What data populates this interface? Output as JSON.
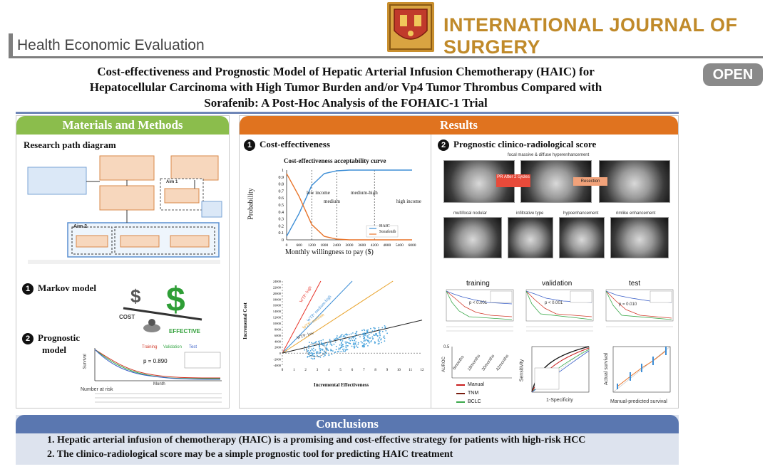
{
  "header": {
    "section_label": "Health Economic Evaluation",
    "journal_name": "INTERNATIONAL JOURNAL OF SURGERY",
    "open_badge": "OPEN",
    "colors": {
      "journal": "#c08a2a",
      "rule": "#7f7f7f"
    }
  },
  "title": {
    "line1": "Cost-effectiveness and Prognostic Model of Hepatic Arterial Infusion Chemotherapy (HAIC) for",
    "line2": "Hepatocellular Carcinoma with High Tumor Burden and/or Vp4 Tumor Thrombus Compared with",
    "line3": "Sorafenib: A Post-Hoc Analysis of the FOHAIC-1 Trial"
  },
  "materials": {
    "heading": "Materials and Methods",
    "research_path": "Research path diagram",
    "markov_num": "1",
    "markov": "Markov model",
    "cost_word": "COST",
    "effective_word": "EFFECTIVE",
    "prog_num": "2",
    "prognostic_line1": "Prognostic",
    "prognostic_line2": "model",
    "km_pvalue": "p = 0.890",
    "km_survival": "Survival",
    "km_month": "Month",
    "number_at_risk": "Number at risk",
    "km_legend": [
      "Training",
      "Validation",
      "Test"
    ],
    "aims": [
      "Aim 1",
      "Aim 2"
    ]
  },
  "results": {
    "heading": "Results",
    "ce_num": "1",
    "ce_title": "Cost-effectiveness",
    "ceac": {
      "title": "Cost-effectiveness acceptability curve",
      "ylabel": "Probability",
      "xlabel": "Monthly willingness to pay ($)",
      "zones": [
        "low income",
        "medium",
        "medium-high",
        "high income"
      ],
      "legend": [
        "HAIC",
        "Sorafenib"
      ],
      "colors": {
        "haic": "#3d8ed6",
        "sorafenib": "#e8742a"
      }
    },
    "scatter": {
      "ylabel": "Incremental Cost",
      "xlabel": "Incremental Effectiveness",
      "wtp_labels": [
        "WTP: high",
        "WTP: medium-high",
        "WTP: medium",
        "WTP: low"
      ]
    },
    "score_num": "2",
    "score_title": "Prognostic clinico-radiological score",
    "scan_labels": {
      "top": "focal massive & diffuse hyperenhancement",
      "pr_after": "PR After 2 cycles",
      "resection": "Resection",
      "row2": [
        "multifocal nodular",
        "infiltrative type",
        "hypoenhancement",
        "rimlike enhancement"
      ]
    },
    "km_titles": [
      "training",
      "validation",
      "test"
    ],
    "km_pvalues": [
      "p < 0.001",
      "p < 0.001",
      "p = 0.010"
    ],
    "auroc": {
      "ylabel": "AUROC",
      "months": [
        "6months",
        "18months",
        "30months",
        "42months"
      ],
      "legend": [
        "Manual",
        "TNM",
        "BCLC"
      ],
      "tick_0_5": "0.5"
    },
    "roc": {
      "xlabel": "1-Specificity",
      "ylabel": "Sensitivity"
    },
    "calib": {
      "xlabel": "Manual-predicted survival",
      "ylabel": "Actual survival"
    }
  },
  "conclusions": {
    "heading": "Conclusions",
    "items": [
      "1. Hepatic arterial infusion of chemotherapy (HAIC) is a promising and cost-effective strategy for patients with high-risk HCC",
      "2. The clinico-radiological score may be a simple prognostic tool for predicting HAIC treatment"
    ]
  },
  "chart_data": [
    {
      "type": "line",
      "title": "Cost-effectiveness acceptability curve",
      "xlabel": "Monthly willingness to pay ($)",
      "ylabel": "Probability",
      "x": [
        0,
        600,
        1200,
        1800,
        2400,
        3000,
        3600,
        4200,
        4800,
        5400,
        6000
      ],
      "xlim": [
        0,
        6000
      ],
      "ylim": [
        0,
        1
      ],
      "series": [
        {
          "name": "HAIC",
          "values": [
            0.05,
            0.38,
            0.78,
            0.95,
            0.99,
            1.0,
            1.0,
            1.0,
            1.0,
            1.0,
            1.0
          ]
        },
        {
          "name": "Sorafenib",
          "values": [
            0.95,
            0.62,
            0.22,
            0.05,
            0.01,
            0.0,
            0.0,
            0.0,
            0.0,
            0.0,
            0.0
          ]
        }
      ]
    },
    {
      "type": "scatter",
      "xlabel": "Incremental Effectiveness",
      "ylabel": "Incremental Cost",
      "xlim": [
        0,
        12
      ],
      "ylim": [
        -4000,
        24000
      ],
      "xticks": [
        0,
        1,
        2,
        3,
        4,
        5,
        6,
        7,
        8,
        9,
        10,
        11,
        12
      ],
      "yticks": [
        -4000,
        -2000,
        0,
        2000,
        4000,
        6000,
        8000,
        10000,
        12000,
        14000,
        16000,
        18000,
        20000,
        22000,
        24000
      ]
    }
  ]
}
